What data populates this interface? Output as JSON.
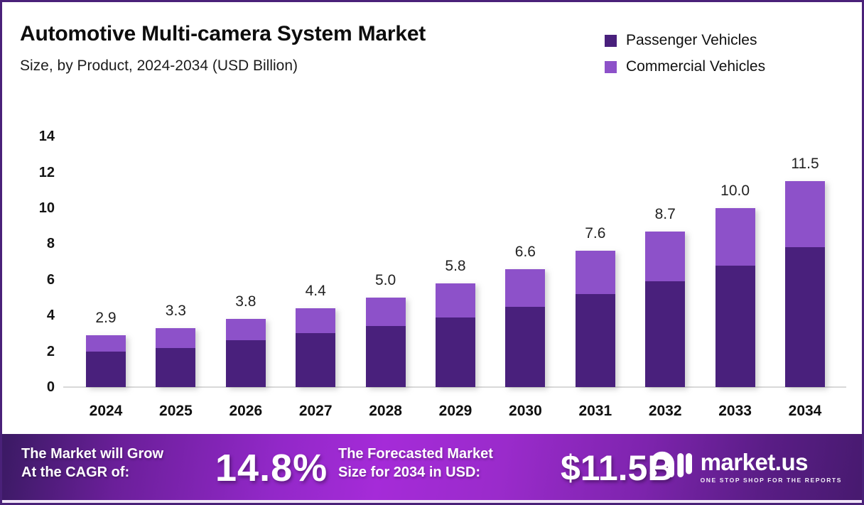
{
  "header": {
    "title": "Automotive Multi-camera System Market",
    "subtitle": "Size, by Product, 2024-2034 (USD Billion)"
  },
  "legend": [
    {
      "label": "Passenger Vehicles",
      "color": "#49207C"
    },
    {
      "label": "Commercial Vehicles",
      "color": "#8D51C9"
    }
  ],
  "chart_data": {
    "type": "bar",
    "stacked": true,
    "title": "Automotive Multi-camera System Market",
    "subtitle": "Size, by Product, 2024-2034 (USD Billion)",
    "xlabel": "",
    "ylabel": "USD Billion",
    "ylim": [
      0,
      14
    ],
    "yticks": [
      0,
      2,
      4,
      6,
      8,
      10,
      12,
      14
    ],
    "grid": false,
    "legend_position": "top-right",
    "categories": [
      "2024",
      "2025",
      "2026",
      "2027",
      "2028",
      "2029",
      "2030",
      "2031",
      "2032",
      "2033",
      "2034"
    ],
    "series": [
      {
        "name": "Passenger Vehicles",
        "color": "#49207C",
        "values": [
          2.0,
          2.2,
          2.6,
          3.0,
          3.4,
          3.9,
          4.5,
          5.2,
          5.9,
          6.8,
          7.8
        ]
      },
      {
        "name": "Commercial Vehicles",
        "color": "#8D51C9",
        "values": [
          0.9,
          1.1,
          1.2,
          1.4,
          1.6,
          1.9,
          2.1,
          2.4,
          2.8,
          3.2,
          3.7
        ]
      }
    ],
    "totals": [
      "2.9",
      "3.3",
      "3.8",
      "4.4",
      "5.0",
      "5.8",
      "6.6",
      "7.6",
      "8.7",
      "10.0",
      "11.5"
    ]
  },
  "banner": {
    "cagr_label_line1": "The Market will Grow",
    "cagr_label_line2": "At the CAGR of:",
    "cagr_value": "14.8%",
    "forecast_label_line1": "The Forecasted Market",
    "forecast_label_line2": "Size for 2034 in USD:",
    "forecast_value": "$11.5B",
    "logo_text": "market.us",
    "logo_tagline": "ONE STOP SHOP FOR THE REPORTS"
  }
}
